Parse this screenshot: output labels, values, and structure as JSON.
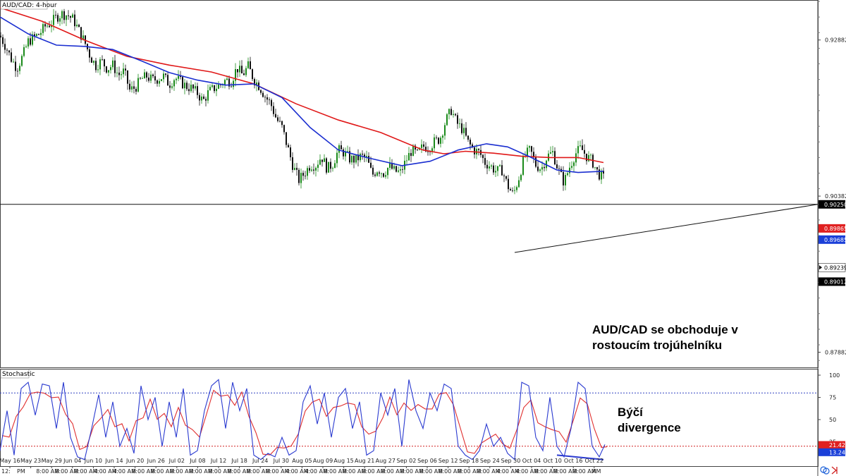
{
  "chart_data": [
    {
      "type": "candlestick",
      "title": "AUD/CAD: 4-hour",
      "ylim": [
        0.8765,
        0.935
      ],
      "yticks": [
        "0.92882",
        "0.90382",
        "0.87882"
      ],
      "x_dates": [
        "May 16",
        "May 23",
        "May 29",
        "Jun 04",
        "Jun 10",
        "Jun 14",
        "Jun 20",
        "Jun 26",
        "Jul 02",
        "Jul 08",
        "Jul 12",
        "Jul 18",
        "Jul 24",
        "Jul 30",
        "Aug 05",
        "Aug 09",
        "Aug 15",
        "Aug 21",
        "Aug 27",
        "Sep 02",
        "Sep 06",
        "Sep 12",
        "Sep 18",
        "Sep 24",
        "Sep 30",
        "Oct 04",
        "Oct 10",
        "Oct 16",
        "Oct 22"
      ],
      "x_times_first": "12:",
      "x_times": [
        "PM",
        "8:00 AM",
        "8:00 AM",
        "8:00 AM",
        "4:00 AM",
        "4:00 AM",
        "8:00 AM",
        "8:00 AM",
        "8:00 AM",
        "8:00 AM",
        "8:00 AM",
        "8:00 AM",
        "8:00 AM",
        "8:00 AM",
        "4:00 AM",
        "4:00 AM",
        "8:00 AM",
        "8:00 AM",
        "8:00 AM",
        "8:00 AM",
        "8:00 AM",
        "8:00 AM",
        "8:00 AM",
        "8:00 AM",
        "8:00 AM",
        "4:00 AM",
        "4:00 AM",
        "8:00 AM",
        "8:00 AM",
        "8:00 AM",
        "AM"
      ],
      "price_path": [
        {
          "x": 0,
          "y": 0.9295
        },
        {
          "x": 8,
          "y": 0.9278
        },
        {
          "x": 16,
          "y": 0.9258
        },
        {
          "x": 24,
          "y": 0.9243
        },
        {
          "x": 32,
          "y": 0.9262
        },
        {
          "x": 40,
          "y": 0.9286
        },
        {
          "x": 48,
          "y": 0.9292
        },
        {
          "x": 56,
          "y": 0.9298
        },
        {
          "x": 64,
          "y": 0.931
        },
        {
          "x": 72,
          "y": 0.9315
        },
        {
          "x": 80,
          "y": 0.9325
        },
        {
          "x": 88,
          "y": 0.933
        },
        {
          "x": 96,
          "y": 0.9328
        },
        {
          "x": 104,
          "y": 0.9321
        },
        {
          "x": 112,
          "y": 0.9303
        },
        {
          "x": 120,
          "y": 0.9285
        },
        {
          "x": 128,
          "y": 0.9262
        },
        {
          "x": 136,
          "y": 0.9247
        },
        {
          "x": 144,
          "y": 0.9255
        },
        {
          "x": 152,
          "y": 0.9242
        },
        {
          "x": 160,
          "y": 0.9248
        },
        {
          "x": 168,
          "y": 0.9232
        },
        {
          "x": 176,
          "y": 0.9238
        },
        {
          "x": 184,
          "y": 0.9208
        },
        {
          "x": 192,
          "y": 0.9212
        },
        {
          "x": 200,
          "y": 0.9225
        },
        {
          "x": 208,
          "y": 0.923
        },
        {
          "x": 216,
          "y": 0.9224
        },
        {
          "x": 224,
          "y": 0.9226
        },
        {
          "x": 232,
          "y": 0.923
        },
        {
          "x": 240,
          "y": 0.9217
        },
        {
          "x": 248,
          "y": 0.9228
        },
        {
          "x": 256,
          "y": 0.9221
        },
        {
          "x": 264,
          "y": 0.9214
        },
        {
          "x": 272,
          "y": 0.9211
        },
        {
          "x": 280,
          "y": 0.9203
        },
        {
          "x": 288,
          "y": 0.919
        },
        {
          "x": 296,
          "y": 0.9205
        },
        {
          "x": 304,
          "y": 0.9211
        },
        {
          "x": 312,
          "y": 0.9216
        },
        {
          "x": 320,
          "y": 0.9224
        },
        {
          "x": 328,
          "y": 0.9222
        },
        {
          "x": 336,
          "y": 0.9244
        },
        {
          "x": 344,
          "y": 0.9232
        },
        {
          "x": 352,
          "y": 0.9246
        },
        {
          "x": 360,
          "y": 0.9225
        },
        {
          "x": 368,
          "y": 0.9214
        },
        {
          "x": 376,
          "y": 0.9198
        },
        {
          "x": 384,
          "y": 0.9186
        },
        {
          "x": 392,
          "y": 0.9162
        },
        {
          "x": 400,
          "y": 0.9148
        },
        {
          "x": 408,
          "y": 0.9116
        },
        {
          "x": 416,
          "y": 0.9085
        },
        {
          "x": 424,
          "y": 0.9064
        },
        {
          "x": 432,
          "y": 0.9075
        },
        {
          "x": 440,
          "y": 0.9088
        },
        {
          "x": 448,
          "y": 0.9088
        },
        {
          "x": 456,
          "y": 0.9102
        },
        {
          "x": 464,
          "y": 0.9082
        },
        {
          "x": 472,
          "y": 0.909
        },
        {
          "x": 480,
          "y": 0.9112
        },
        {
          "x": 488,
          "y": 0.9108
        },
        {
          "x": 496,
          "y": 0.9098
        },
        {
          "x": 504,
          "y": 0.9096
        },
        {
          "x": 512,
          "y": 0.9102
        },
        {
          "x": 520,
          "y": 0.9098
        },
        {
          "x": 528,
          "y": 0.9072
        },
        {
          "x": 536,
          "y": 0.9082
        },
        {
          "x": 544,
          "y": 0.9075
        },
        {
          "x": 552,
          "y": 0.9086
        },
        {
          "x": 560,
          "y": 0.9078
        },
        {
          "x": 568,
          "y": 0.9076
        },
        {
          "x": 576,
          "y": 0.9095
        },
        {
          "x": 584,
          "y": 0.9112
        },
        {
          "x": 592,
          "y": 0.9105
        },
        {
          "x": 600,
          "y": 0.9118
        },
        {
          "x": 608,
          "y": 0.9116
        },
        {
          "x": 616,
          "y": 0.9125
        },
        {
          "x": 624,
          "y": 0.913
        },
        {
          "x": 632,
          "y": 0.9158
        },
        {
          "x": 640,
          "y": 0.9176
        },
        {
          "x": 648,
          "y": 0.9155
        },
        {
          "x": 656,
          "y": 0.9145
        },
        {
          "x": 664,
          "y": 0.9124
        },
        {
          "x": 672,
          "y": 0.9112
        },
        {
          "x": 680,
          "y": 0.9108
        },
        {
          "x": 688,
          "y": 0.9092
        },
        {
          "x": 696,
          "y": 0.9086
        },
        {
          "x": 704,
          "y": 0.9078
        },
        {
          "x": 712,
          "y": 0.908
        },
        {
          "x": 720,
          "y": 0.9055
        },
        {
          "x": 728,
          "y": 0.904
        },
        {
          "x": 736,
          "y": 0.9068
        },
        {
          "x": 744,
          "y": 0.9102
        },
        {
          "x": 752,
          "y": 0.9112
        },
        {
          "x": 760,
          "y": 0.9088
        },
        {
          "x": 768,
          "y": 0.9082
        },
        {
          "x": 776,
          "y": 0.9102
        },
        {
          "x": 784,
          "y": 0.9108
        },
        {
          "x": 792,
          "y": 0.908
        },
        {
          "x": 800,
          "y": 0.906
        },
        {
          "x": 808,
          "y": 0.9085
        },
        {
          "x": 816,
          "y": 0.9106
        },
        {
          "x": 824,
          "y": 0.9115
        },
        {
          "x": 832,
          "y": 0.9102
        },
        {
          "x": 840,
          "y": 0.9094
        },
        {
          "x": 848,
          "y": 0.9075
        },
        {
          "x": 856,
          "y": 0.9067
        }
      ],
      "ma_red": [
        {
          "x": 0,
          "y": 0.934
        },
        {
          "x": 60,
          "y": 0.9318
        },
        {
          "x": 120,
          "y": 0.9288
        },
        {
          "x": 180,
          "y": 0.9262
        },
        {
          "x": 240,
          "y": 0.9248
        },
        {
          "x": 300,
          "y": 0.9237
        },
        {
          "x": 360,
          "y": 0.9218
        },
        {
          "x": 420,
          "y": 0.9186
        },
        {
          "x": 480,
          "y": 0.916
        },
        {
          "x": 540,
          "y": 0.914
        },
        {
          "x": 600,
          "y": 0.9112
        },
        {
          "x": 630,
          "y": 0.9106
        },
        {
          "x": 660,
          "y": 0.911
        },
        {
          "x": 700,
          "y": 0.9107
        },
        {
          "x": 740,
          "y": 0.9102
        },
        {
          "x": 780,
          "y": 0.91
        },
        {
          "x": 820,
          "y": 0.91
        },
        {
          "x": 856,
          "y": 0.9092
        }
      ],
      "ma_blue": [
        {
          "x": 0,
          "y": 0.9325
        },
        {
          "x": 40,
          "y": 0.9298
        },
        {
          "x": 80,
          "y": 0.928
        },
        {
          "x": 120,
          "y": 0.9278
        },
        {
          "x": 160,
          "y": 0.9273
        },
        {
          "x": 200,
          "y": 0.9255
        },
        {
          "x": 240,
          "y": 0.9236
        },
        {
          "x": 280,
          "y": 0.9224
        },
        {
          "x": 320,
          "y": 0.9216
        },
        {
          "x": 360,
          "y": 0.9218
        },
        {
          "x": 400,
          "y": 0.9196
        },
        {
          "x": 440,
          "y": 0.9148
        },
        {
          "x": 480,
          "y": 0.9112
        },
        {
          "x": 520,
          "y": 0.91
        },
        {
          "x": 570,
          "y": 0.9087
        },
        {
          "x": 610,
          "y": 0.9094
        },
        {
          "x": 650,
          "y": 0.9112
        },
        {
          "x": 690,
          "y": 0.9122
        },
        {
          "x": 720,
          "y": 0.9117
        },
        {
          "x": 750,
          "y": 0.9102
        },
        {
          "x": 790,
          "y": 0.908
        },
        {
          "x": 820,
          "y": 0.9076
        },
        {
          "x": 856,
          "y": 0.9078
        }
      ],
      "horizontal_line": 0.9025,
      "trendline": {
        "from": {
          "x": 730,
          "y": 0.8948
        },
        "to": {
          "x": 1160,
          "y": 0.9025
        }
      },
      "price_tags": [
        {
          "value": "0.90250",
          "color": "#000000"
        },
        {
          "value": "0.89865",
          "color": "#e02020"
        },
        {
          "value": "0.89685",
          "color": "#1a3fd8"
        },
        {
          "value": "0.89239",
          "color": "#ffffff"
        },
        {
          "value": "0.89012",
          "color": "#000000"
        }
      ],
      "annotation": "AUD/CAD se obchoduje v rostoucím trojúhelníku"
    },
    {
      "type": "line",
      "title": "Stochastic",
      "ylim": [
        0,
        100
      ],
      "yticks": [
        "100",
        "75",
        "50",
        "25"
      ],
      "levels": [
        80,
        20
      ],
      "k_line": [
        {
          "x": 0,
          "y": 15
        },
        {
          "x": 10,
          "y": 60
        },
        {
          "x": 20,
          "y": 10
        },
        {
          "x": 30,
          "y": 85
        },
        {
          "x": 40,
          "y": 92
        },
        {
          "x": 50,
          "y": 55
        },
        {
          "x": 60,
          "y": 90
        },
        {
          "x": 70,
          "y": 88
        },
        {
          "x": 80,
          "y": 40
        },
        {
          "x": 90,
          "y": 92
        },
        {
          "x": 100,
          "y": 30
        },
        {
          "x": 110,
          "y": 8
        },
        {
          "x": 120,
          "y": 5
        },
        {
          "x": 130,
          "y": 40
        },
        {
          "x": 140,
          "y": 78
        },
        {
          "x": 150,
          "y": 30
        },
        {
          "x": 160,
          "y": 70
        },
        {
          "x": 170,
          "y": 20
        },
        {
          "x": 180,
          "y": 40
        },
        {
          "x": 190,
          "y": 12
        },
        {
          "x": 200,
          "y": 88
        },
        {
          "x": 210,
          "y": 50
        },
        {
          "x": 220,
          "y": 75
        },
        {
          "x": 230,
          "y": 20
        },
        {
          "x": 240,
          "y": 70
        },
        {
          "x": 250,
          "y": 30
        },
        {
          "x": 260,
          "y": 85
        },
        {
          "x": 270,
          "y": 10
        },
        {
          "x": 280,
          "y": 15
        },
        {
          "x": 290,
          "y": 60
        },
        {
          "x": 300,
          "y": 88
        },
        {
          "x": 310,
          "y": 95
        },
        {
          "x": 320,
          "y": 40
        },
        {
          "x": 330,
          "y": 92
        },
        {
          "x": 340,
          "y": 60
        },
        {
          "x": 350,
          "y": 85
        },
        {
          "x": 360,
          "y": 10
        },
        {
          "x": 370,
          "y": 5
        },
        {
          "x": 380,
          "y": 12
        },
        {
          "x": 390,
          "y": 8
        },
        {
          "x": 400,
          "y": 30
        },
        {
          "x": 410,
          "y": 10
        },
        {
          "x": 420,
          "y": 15
        },
        {
          "x": 430,
          "y": 70
        },
        {
          "x": 440,
          "y": 88
        },
        {
          "x": 450,
          "y": 45
        },
        {
          "x": 460,
          "y": 80
        },
        {
          "x": 470,
          "y": 30
        },
        {
          "x": 480,
          "y": 75
        },
        {
          "x": 490,
          "y": 85
        },
        {
          "x": 500,
          "y": 40
        },
        {
          "x": 510,
          "y": 70
        },
        {
          "x": 520,
          "y": 10
        },
        {
          "x": 530,
          "y": 15
        },
        {
          "x": 540,
          "y": 80
        },
        {
          "x": 550,
          "y": 55
        },
        {
          "x": 560,
          "y": 85
        },
        {
          "x": 570,
          "y": 20
        },
        {
          "x": 580,
          "y": 95
        },
        {
          "x": 590,
          "y": 60
        },
        {
          "x": 600,
          "y": 40
        },
        {
          "x": 610,
          "y": 80
        },
        {
          "x": 620,
          "y": 60
        },
        {
          "x": 630,
          "y": 90
        },
        {
          "x": 640,
          "y": 85
        },
        {
          "x": 650,
          "y": 20
        },
        {
          "x": 660,
          "y": 10
        },
        {
          "x": 670,
          "y": 5
        },
        {
          "x": 680,
          "y": 15
        },
        {
          "x": 690,
          "y": 45
        },
        {
          "x": 700,
          "y": 20
        },
        {
          "x": 710,
          "y": 30
        },
        {
          "x": 720,
          "y": 12
        },
        {
          "x": 730,
          "y": 5
        },
        {
          "x": 740,
          "y": 92
        },
        {
          "x": 750,
          "y": 88
        },
        {
          "x": 760,
          "y": 30
        },
        {
          "x": 770,
          "y": 15
        },
        {
          "x": 780,
          "y": 75
        },
        {
          "x": 790,
          "y": 20
        },
        {
          "x": 800,
          "y": 8
        },
        {
          "x": 810,
          "y": 40
        },
        {
          "x": 820,
          "y": 92
        },
        {
          "x": 830,
          "y": 85
        },
        {
          "x": 840,
          "y": 20
        },
        {
          "x": 850,
          "y": 8
        },
        {
          "x": 858,
          "y": 22
        }
      ],
      "divergence_line": {
        "from": {
          "x": 790,
          "y": 10
        },
        "to": {
          "x": 856,
          "y": 5
        }
      },
      "value_tags": [
        {
          "value": "21.42",
          "color": "#e02020"
        },
        {
          "value": "13.24",
          "color": "#1a3fd8"
        }
      ],
      "annotation": "Býčí divergence"
    }
  ]
}
